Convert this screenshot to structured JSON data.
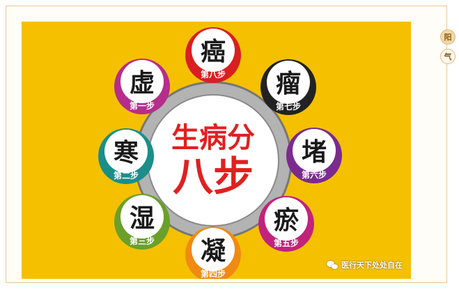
{
  "poster": {
    "center_line1": "生病分",
    "center_line2": "八步",
    "steps": [
      {
        "char": "虚",
        "label": "第一步",
        "color": "#b52e8c"
      },
      {
        "char": "寒",
        "label": "第二步",
        "color": "#1b8e8a"
      },
      {
        "char": "湿",
        "label": "第三步",
        "color": "#6aa02a"
      },
      {
        "char": "凝",
        "label": "第四步",
        "color": "#f18a12"
      },
      {
        "char": "瘀",
        "label": "第五步",
        "color": "#c2237a"
      },
      {
        "char": "堵",
        "label": "第六步",
        "color": "#7b2b8e"
      },
      {
        "char": "瘤",
        "label": "第七步",
        "color": "#222222"
      },
      {
        "char": "癌",
        "label": "第八步",
        "color": "#d91f1f"
      }
    ],
    "watermark": "医行天下处处自在"
  },
  "side_tabs": [
    {
      "label": "阳"
    },
    {
      "label": "气"
    }
  ],
  "colors": {
    "poster_bg": "#f5c000",
    "center_text": "#e02020",
    "ring": "#9a9a9a"
  }
}
